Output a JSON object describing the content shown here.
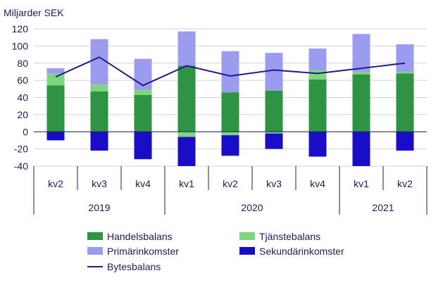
{
  "chart_data": {
    "type": "bar",
    "stacked": true,
    "unit_label": "Miljarder SEK",
    "ylim": [
      -40,
      120
    ],
    "yticks": [
      -40,
      -20,
      0,
      20,
      40,
      60,
      80,
      100,
      120
    ],
    "grid": true,
    "legend_position": "bottom",
    "categories": [
      "kv2",
      "kv3",
      "kv4",
      "kv1",
      "kv2",
      "kv3",
      "kv4",
      "kv1",
      "kv2"
    ],
    "years": [
      {
        "label": "2019",
        "count": 3
      },
      {
        "label": "2020",
        "count": 4
      },
      {
        "label": "2021",
        "count": 2
      }
    ],
    "series": [
      {
        "name": "Handelsbalans",
        "kind": "bar",
        "color": "#2e9444",
        "values": [
          54,
          47,
          43,
          77,
          46,
          48,
          61,
          67,
          68
        ]
      },
      {
        "name": "Tjänstebalans",
        "kind": "bar",
        "color": "#7ed67e",
        "values": [
          14,
          8,
          6,
          -6,
          -4,
          -2,
          11,
          3,
          2
        ]
      },
      {
        "name": "Primärinkomster",
        "kind": "bar",
        "color": "#9b9bf0",
        "values": [
          6,
          53,
          36,
          40,
          48,
          44,
          25,
          44,
          32
        ]
      },
      {
        "name": "Sekundärinkomster",
        "kind": "bar",
        "color": "#1a0dc8",
        "values": [
          -10,
          -22,
          -32,
          -34,
          -24,
          -18,
          -29,
          -40,
          -22
        ]
      },
      {
        "name": "Bytesbalans",
        "kind": "line",
        "color": "#1f1a8c",
        "values": [
          64,
          87,
          54,
          77,
          65,
          72,
          68,
          74,
          80
        ]
      }
    ]
  }
}
